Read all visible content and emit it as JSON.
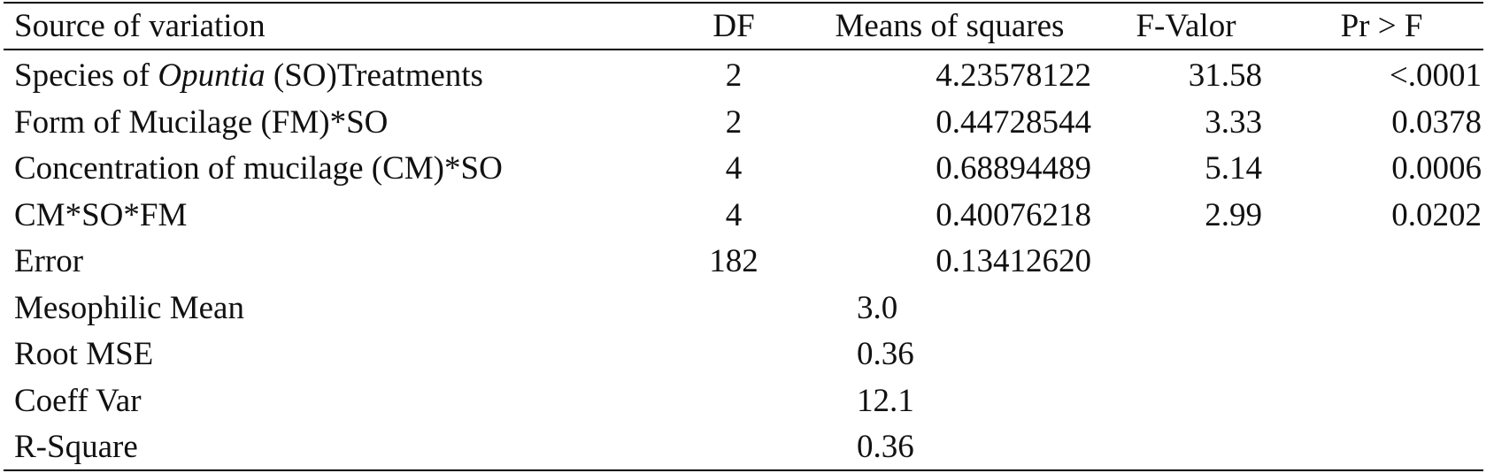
{
  "table": {
    "header": [
      "Source of variation",
      "DF",
      "Means of squares",
      "F-Valor",
      "Pr > F"
    ],
    "rows": [
      [
        [
          {
            "text": "Species of "
          },
          {
            "text": "Opuntia",
            "italic": true
          },
          {
            "text": " (SO)Treatments"
          }
        ],
        "2",
        "4.23578122",
        "31.58",
        "<.0001"
      ],
      [
        "Form of Mucilage (FM)*SO",
        "2",
        "0.44728544",
        "3.33",
        "0.0378"
      ],
      [
        "Concentration of mucilage (CM)*SO",
        "4",
        "0.68894489",
        "5.14",
        "0.0006"
      ],
      [
        "CM*SO*FM",
        "4",
        "0.40076218",
        "2.99",
        "0.0202"
      ],
      [
        "Error",
        "182",
        "0.13412620"
      ],
      [
        "Mesophilic Mean",
        "3.0"
      ],
      [
        "Root MSE",
        "0.36"
      ],
      [
        "Coeff Var",
        "12.1"
      ],
      [
        "R-Square",
        "0.36"
      ]
    ]
  }
}
